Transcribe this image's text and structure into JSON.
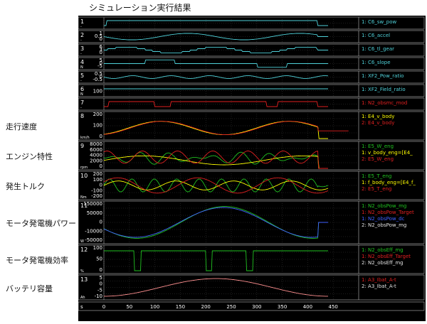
{
  "window": {
    "title": "シミュレーション実行結果"
  },
  "row_labels": [
    {
      "panel": 8,
      "text": "走行速度"
    },
    {
      "panel": 9,
      "text": "エンジン特性"
    },
    {
      "panel": 10,
      "text": "発生トルク"
    },
    {
      "panel": 11,
      "text": "モータ発電機パワー"
    },
    {
      "panel": 12,
      "text": "モータ発電機効率"
    },
    {
      "panel": 13,
      "text": "バッテリ容量"
    }
  ],
  "colors": {
    "background": "#000000",
    "grid": "#3a3a3a",
    "axis_text": "#ffffff",
    "cyan": "#4fd0d8",
    "yellow": "#ffff00",
    "red": "#e02020",
    "green": "#20c020",
    "blue": "#4060ff",
    "white": "#e0e0e0",
    "pink": "#ff9090"
  },
  "panels": [
    {
      "index": "1",
      "unit": "-",
      "ticks": [],
      "legend": [
        {
          "text": "1: C6_sw_pow",
          "color": "cyan"
        }
      ]
    },
    {
      "index": "2",
      "unit": "-",
      "ticks": [
        "1",
        "0.5",
        "0"
      ],
      "legend": [
        {
          "text": "1: C6_accel",
          "color": "cyan"
        }
      ]
    },
    {
      "index": "3",
      "unit": "-",
      "ticks": [
        "6",
        "3",
        "0"
      ],
      "legend": [
        {
          "text": "1: C6_tl_gear",
          "color": "cyan"
        }
      ]
    },
    {
      "index": "4",
      "unit": "N",
      "ticks": [
        "5",
        "0",
        "-5"
      ],
      "legend": [
        {
          "text": "1: C6_slope",
          "color": "cyan"
        }
      ]
    },
    {
      "index": "5",
      "unit": "-",
      "ticks": [
        "0.5",
        "0",
        "-0.5"
      ],
      "legend": [
        {
          "text": "1: XF2_Pow_ratio",
          "color": "cyan"
        }
      ]
    },
    {
      "index": "6",
      "unit": "N",
      "ticks": [
        "100"
      ],
      "legend": [
        {
          "text": "1: XF2_Field_ratio",
          "color": "cyan"
        }
      ]
    },
    {
      "index": "7",
      "unit": "-",
      "ticks": [],
      "legend": [
        {
          "text": "1: N2_obsmc_mod",
          "color": "red"
        }
      ]
    },
    {
      "index": "8",
      "unit": "km/h",
      "ticks": [
        "200",
        "100",
        "0"
      ],
      "legend": [
        {
          "text": "1: E4_v_body",
          "color": "yellow"
        },
        {
          "text": "2: E4_v_body",
          "color": "red"
        }
      ]
    },
    {
      "index": "9",
      "unit": "rpm",
      "ticks": [
        "8000",
        "6000",
        "4000",
        "2000",
        "0"
      ],
      "legend": [
        {
          "text": "1: E5_W_eng",
          "color": "green"
        },
        {
          "text": "1: v_body_eng=[E4_",
          "color": "yellow"
        },
        {
          "text": "2: E5_W_eng",
          "color": "red"
        }
      ]
    },
    {
      "index": "10",
      "unit": "Nm",
      "ticks": [
        "200",
        "100",
        "0",
        "-100",
        "-200"
      ],
      "legend": [
        {
          "text": "1: E5_T_eng",
          "color": "green"
        },
        {
          "text": "1: f_body_eng=[E4_f_",
          "color": "yellow"
        },
        {
          "text": "2: E5_T_eng",
          "color": "red"
        }
      ]
    },
    {
      "index": "11",
      "unit": "W",
      "ticks": [
        "150000",
        "50000",
        "0",
        "-10000",
        "-50000"
      ],
      "legend": [
        {
          "text": "1: N2_obsPow_mg",
          "color": "green"
        },
        {
          "text": "1: N2_obsPow_Target",
          "color": "red"
        },
        {
          "text": "1: N2_obsPow_dc",
          "color": "blue"
        },
        {
          "text": "2: N2_obsPow_mg",
          "color": "white"
        }
      ]
    },
    {
      "index": "12",
      "unit": "%",
      "ticks": [
        "100",
        "50",
        "0"
      ],
      "legend": [
        {
          "text": "1: N2_obsEff_mg",
          "color": "green"
        },
        {
          "text": "1: N2_obsEff_Target",
          "color": "red"
        },
        {
          "text": "2: N2_obsEff_mg",
          "color": "white"
        }
      ]
    },
    {
      "index": "13",
      "unit": "Ah",
      "ticks": [
        "5",
        "0",
        "-5",
        "-10"
      ],
      "legend": [
        {
          "text": "1: A3_Ibat_A-t",
          "color": "red"
        },
        {
          "text": "2: A3_Ibat_A-t",
          "color": "white"
        }
      ]
    }
  ],
  "x_axis": {
    "unit": "s",
    "ticks": [
      0,
      50,
      100,
      150,
      200,
      250,
      300,
      350,
      400,
      450
    ],
    "range": [
      0,
      450
    ]
  }
}
